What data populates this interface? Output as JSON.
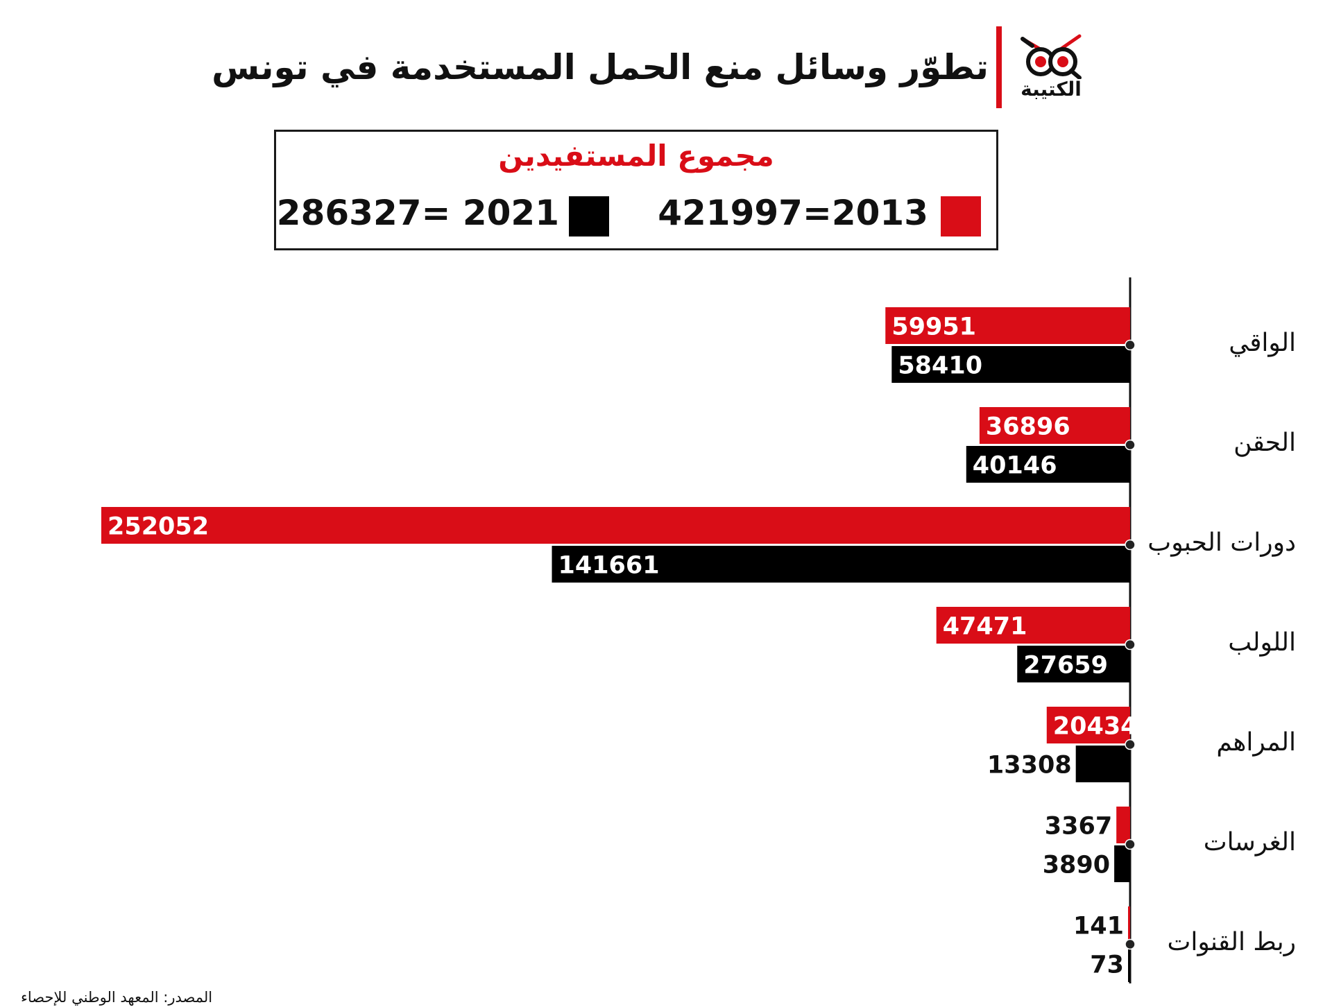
{
  "header": {
    "title": "تطوّر وسائل منع الحمل المستخدمة في تونس",
    "logo_text": "الكتيبة"
  },
  "legend": {
    "title": "مجموع المستفيدين",
    "items": [
      {
        "label": "421997=2013",
        "color": "#d90d17"
      },
      {
        "label": "286327= 2021",
        "color": "#000000"
      }
    ]
  },
  "chart_data": {
    "type": "bar",
    "orientation": "horizontal",
    "categories": [
      "الواقي",
      "الحقن",
      "دورات الحبوب",
      "اللولب",
      "المراهم",
      "الغرسات",
      "ربط القنوات"
    ],
    "series": [
      {
        "name": "2013",
        "color": "#d90d17",
        "values": [
          59951,
          36896,
          252052,
          47471,
          20434,
          3367,
          141
        ]
      },
      {
        "name": "2021",
        "color": "#000000",
        "values": [
          58410,
          40146,
          141661,
          27659,
          13308,
          3890,
          73
        ]
      }
    ]
  },
  "footer": {
    "source": "المصدر: المعهد الوطني للإحصاء"
  }
}
